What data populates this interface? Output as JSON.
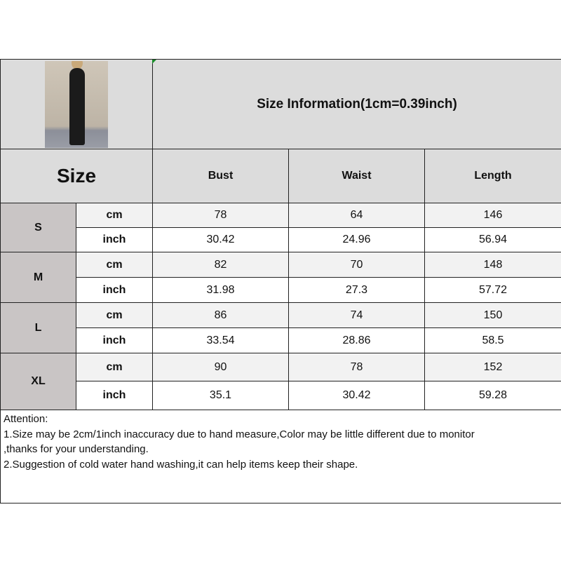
{
  "header": {
    "title": "Size Information(1cm=0.39inch)",
    "photo_alt": "model wearing black jumpsuit"
  },
  "columns": {
    "size": "Size",
    "bust": "Bust",
    "waist": "Waist",
    "length": "Length"
  },
  "rows": [
    {
      "size": "S",
      "cm": {
        "unit": "cm",
        "bust": "78",
        "waist": "64",
        "length": "146"
      },
      "inch": {
        "unit": "inch",
        "bust": "30.42",
        "waist": "24.96",
        "length": "56.94"
      }
    },
    {
      "size": "M",
      "cm": {
        "unit": "cm",
        "bust": "82",
        "waist": "70",
        "length": "148"
      },
      "inch": {
        "unit": "inch",
        "bust": "31.98",
        "waist": "27.3",
        "length": "57.72"
      }
    },
    {
      "size": "L",
      "cm": {
        "unit": "cm",
        "bust": "86",
        "waist": "74",
        "length": "150"
      },
      "inch": {
        "unit": "inch",
        "bust": "33.54",
        "waist": "28.86",
        "length": "58.5"
      }
    },
    {
      "size": "XL",
      "cm": {
        "unit": "cm",
        "bust": "90",
        "waist": "78",
        "length": "152"
      },
      "inch": {
        "unit": "inch",
        "bust": "35.1",
        "waist": "30.42",
        "length": "59.28"
      }
    }
  ],
  "notes": [
    "Attention:",
    "1.Size may be 2cm/1inch inaccuracy due to hand measure,Color may be little different due to monitor",
    ",thanks for your understanding.",
    "2.Suggestion of cold water hand washing,it can help items keep their shape."
  ]
}
